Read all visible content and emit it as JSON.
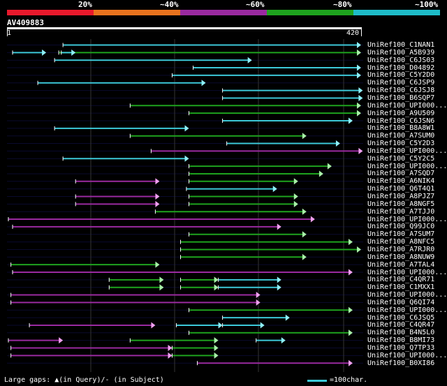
{
  "legend": {
    "colors": [
      "#e8192c",
      "#e8731e",
      "#9a2aa0",
      "#1ea31e",
      "#1ebcc8"
    ],
    "labels": [
      "20%",
      "~40%",
      "~60%",
      "~80%",
      "~100%"
    ]
  },
  "query": {
    "accession": "AV409883",
    "start_label": "1",
    "end_label": "420",
    "length": 420
  },
  "footer": {
    "gaps_text": "Large gaps: ▲(in Query)/- (in Subject)",
    "scale_text": "=100char."
  },
  "hits": [
    {
      "name": "UniRef100_C1NAN1",
      "segs": [
        [
          65,
          420,
          "cyan"
        ]
      ]
    },
    {
      "name": "UniRef100_A5B939",
      "segs": [
        [
          5,
          45,
          "cyan"
        ],
        [
          60,
          420,
          "green"
        ],
        [
          63,
          80,
          "cyan"
        ]
      ]
    },
    {
      "name": "UniRef100_C6JS03",
      "segs": [
        [
          55,
          290,
          "cyan"
        ]
      ]
    },
    {
      "name": "UniRef100_D04892",
      "segs": [
        [
          220,
          420,
          "cyan"
        ]
      ]
    },
    {
      "name": "UniRef100_C5Y2D0",
      "segs": [
        [
          195,
          420,
          "cyan"
        ]
      ]
    },
    {
      "name": "UniRef100_C6JSP9",
      "segs": [
        [
          35,
          235,
          "cyan"
        ]
      ]
    },
    {
      "name": "UniRef100_C6JSJ8",
      "segs": [
        [
          255,
          422,
          "cyan"
        ]
      ]
    },
    {
      "name": "UniRef100_B6SQP7",
      "segs": [
        [
          255,
          422,
          "cyan"
        ]
      ]
    },
    {
      "name": "UniRef100_UPI000...",
      "segs": [
        [
          145,
          420,
          "green"
        ]
      ]
    },
    {
      "name": "UniRef100_A9U509",
      "segs": [
        [
          215,
          420,
          "green"
        ]
      ]
    },
    {
      "name": "UniRef100_C6JSN6",
      "segs": [
        [
          255,
          410,
          "cyan"
        ]
      ]
    },
    {
      "name": "UniRef100_B8A8W1",
      "segs": [
        [
          55,
          215,
          "cyan"
        ]
      ]
    },
    {
      "name": "UniRef100_A7SUM0",
      "segs": [
        [
          145,
          355,
          "green"
        ]
      ]
    },
    {
      "name": "UniRef100_C5Y2D3",
      "segs": [
        [
          260,
          395,
          "cyan"
        ]
      ]
    },
    {
      "name": "UniRef100_UPI000...",
      "segs": [
        [
          170,
          422,
          "purple"
        ]
      ]
    },
    {
      "name": "UniRef100_C5Y2C5",
      "segs": [
        [
          65,
          215,
          "cyan"
        ]
      ]
    },
    {
      "name": "UniRef100_UPI000...",
      "segs": [
        [
          215,
          385,
          "green"
        ]
      ]
    },
    {
      "name": "UniRef100_A7SQD7",
      "segs": [
        [
          215,
          375,
          "green"
        ]
      ]
    },
    {
      "name": "UniRef100_A6NIK4",
      "segs": [
        [
          80,
          180,
          "purple"
        ],
        [
          215,
          345,
          "green"
        ]
      ]
    },
    {
      "name": "UniRef100_Q6T4Q1",
      "segs": [
        [
          212,
          320,
          "cyan"
        ]
      ]
    },
    {
      "name": "UniRef100_A8PJZ7",
      "segs": [
        [
          80,
          180,
          "purple"
        ],
        [
          215,
          345,
          "green"
        ]
      ]
    },
    {
      "name": "UniRef100_A8NGF5",
      "segs": [
        [
          80,
          180,
          "purple"
        ],
        [
          215,
          345,
          "green"
        ]
      ]
    },
    {
      "name": "UniRef100_A7TJJ0",
      "segs": [
        [
          175,
          355,
          "green"
        ]
      ]
    },
    {
      "name": "UniRef100_UPI000...",
      "segs": [
        [
          0,
          365,
          "purple"
        ]
      ]
    },
    {
      "name": "UniRef100_Q99JC0",
      "segs": [
        [
          5,
          325,
          "purple"
        ]
      ]
    },
    {
      "name": "UniRef100_A7SUM7",
      "segs": [
        [
          215,
          355,
          "green"
        ]
      ]
    },
    {
      "name": "UniRef100_A8NFC5",
      "segs": [
        [
          205,
          410,
          "green"
        ]
      ]
    },
    {
      "name": "UniRef100_A7RJR0",
      "segs": [
        [
          205,
          420,
          "green"
        ]
      ]
    },
    {
      "name": "UniRef100_A8NUW9",
      "segs": [
        [
          205,
          355,
          "green"
        ]
      ]
    },
    {
      "name": "UniRef100_A7TAL4",
      "segs": [
        [
          3,
          180,
          "green"
        ]
      ]
    },
    {
      "name": "UniRef100_UPI000...",
      "segs": [
        [
          5,
          410,
          "purple"
        ]
      ]
    },
    {
      "name": "UniRef100_C4QR71",
      "segs": [
        [
          120,
          185,
          "green"
        ],
        [
          205,
          250,
          "green"
        ],
        [
          250,
          325,
          "cyan"
        ]
      ]
    },
    {
      "name": "UniRef100_C1MXX1",
      "segs": [
        [
          120,
          185,
          "green"
        ],
        [
          205,
          250,
          "green"
        ],
        [
          250,
          325,
          "cyan"
        ]
      ]
    },
    {
      "name": "UniRef100_UPI000...",
      "segs": [
        [
          3,
          300,
          "purple"
        ]
      ]
    },
    {
      "name": "UniRef100_Q6QI74",
      "segs": [
        [
          3,
          300,
          "purple"
        ]
      ]
    },
    {
      "name": "UniRef100_UPI000...",
      "segs": [
        [
          215,
          410,
          "green"
        ]
      ]
    },
    {
      "name": "UniRef100_C6JSQ5",
      "segs": [
        [
          255,
          335,
          "cyan"
        ]
      ]
    },
    {
      "name": "UniRef100_C4QR47",
      "segs": [
        [
          25,
          175,
          "purple"
        ],
        [
          200,
          255,
          "cyan"
        ],
        [
          255,
          305,
          "cyan"
        ]
      ]
    },
    {
      "name": "UniRef100_B4N5L0",
      "segs": [
        [
          215,
          410,
          "green"
        ]
      ]
    },
    {
      "name": "UniRef100_B8MI73",
      "segs": [
        [
          0,
          65,
          "purple"
        ],
        [
          145,
          250,
          "green"
        ],
        [
          295,
          330,
          "cyan"
        ]
      ]
    },
    {
      "name": "UniRef100_Q7TP33",
      "segs": [
        [
          3,
          195,
          "purple"
        ],
        [
          195,
          250,
          "green"
        ]
      ]
    },
    {
      "name": "UniRef100_UPI000...",
      "segs": [
        [
          3,
          195,
          "purple"
        ],
        [
          195,
          250,
          "green"
        ]
      ]
    },
    {
      "name": "UniRef100_B0XI86",
      "segs": [
        [
          225,
          410,
          "purple"
        ]
      ]
    }
  ]
}
